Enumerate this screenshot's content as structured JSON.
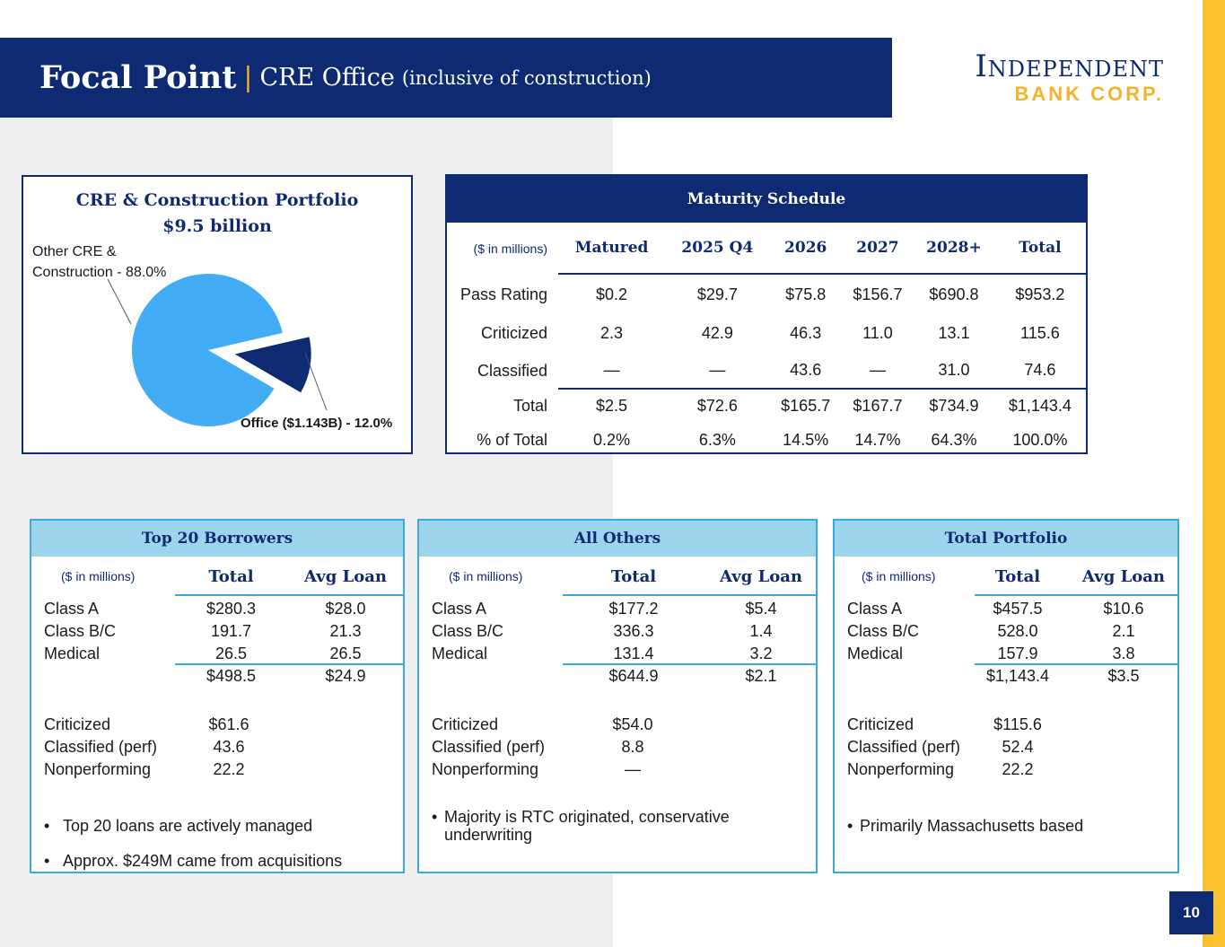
{
  "header": {
    "title_main": "Focal Point",
    "separator": "|",
    "title_sub": "CRE Office",
    "title_paren": "(inclusive of construction)"
  },
  "logo": {
    "line1": "Independent",
    "line2": "BANK CORP."
  },
  "colors": {
    "navy": "#0e2a73",
    "gold": "#f2b42a",
    "light_blue": "#42adf5",
    "card_border": "#39a9df",
    "card_header": "#9dd6ec"
  },
  "pie": {
    "title_line1": "CRE & Construction Portfolio",
    "title_line2": "$9.5 billion",
    "label_other_line1": "Other CRE &",
    "label_other_line2": "Construction - 88.0%",
    "label_office": "Office ($1.143B) - 12.0%"
  },
  "chart_data": {
    "type": "pie",
    "title": "CRE & Construction Portfolio $9.5 billion",
    "categories": [
      "Other CRE & Construction",
      "Office ($1.143B)"
    ],
    "values": [
      88.0,
      12.0
    ],
    "colors": [
      "#42adf5",
      "#0e2a73"
    ]
  },
  "maturity": {
    "title": "Maturity Schedule",
    "unit": "($ in millions)",
    "columns": [
      "Matured",
      "2025 Q4",
      "2026",
      "2027",
      "2028+",
      "Total"
    ],
    "rows": [
      {
        "label": "Pass Rating",
        "values": [
          "$0.2",
          "$29.7",
          "$75.8",
          "$156.7",
          "$690.8",
          "$953.2"
        ]
      },
      {
        "label": "Criticized",
        "values": [
          "2.3",
          "42.9",
          "46.3",
          "11.0",
          "13.1",
          "115.6"
        ]
      },
      {
        "label": "Classified",
        "values": [
          "—",
          "—",
          "43.6",
          "—",
          "31.0",
          "74.6"
        ]
      },
      {
        "label": "Total",
        "values": [
          "$2.5",
          "$72.6",
          "$165.7",
          "$167.7",
          "$734.9",
          "$1,143.4"
        ]
      },
      {
        "label": "% of Total",
        "values": [
          "0.2%",
          "6.3%",
          "14.5%",
          "14.7%",
          "64.3%",
          "100.0%"
        ]
      }
    ]
  },
  "cards": [
    {
      "title": "Top 20 Borrowers",
      "unit": "($ in millions)",
      "col_total": "Total",
      "col_avg": "Avg Loan",
      "rows": [
        {
          "label": "Class A",
          "total": "$280.3",
          "avg": "$28.0"
        },
        {
          "label": "Class B/C",
          "total": "191.7",
          "avg": "21.3"
        },
        {
          "label": "Medical",
          "total": "26.5",
          "avg": "26.5"
        }
      ],
      "subtotal": {
        "total": "$498.5",
        "avg": "$24.9"
      },
      "quality": [
        {
          "label": "Criticized",
          "value": "$61.6"
        },
        {
          "label": "Classified (perf)",
          "value": "43.6"
        },
        {
          "label": "Nonperforming",
          "value": "22.2"
        }
      ],
      "bullets": [
        "Top 20 loans are actively managed",
        "Approx. $249M came from acquisitions"
      ]
    },
    {
      "title": "All Others",
      "unit": "($ in millions)",
      "col_total": "Total",
      "col_avg": "Avg Loan",
      "rows": [
        {
          "label": "Class A",
          "total": "$177.2",
          "avg": "$5.4"
        },
        {
          "label": "Class B/C",
          "total": "336.3",
          "avg": "1.4"
        },
        {
          "label": "Medical",
          "total": "131.4",
          "avg": "3.2"
        }
      ],
      "subtotal": {
        "total": "$644.9",
        "avg": "$2.1"
      },
      "quality": [
        {
          "label": "Criticized",
          "value": "$54.0"
        },
        {
          "label": "Classified (perf)",
          "value": "8.8"
        },
        {
          "label": "Nonperforming",
          "value": "—"
        }
      ],
      "bullets": [
        "Majority is RTC originated, conservative underwriting"
      ]
    },
    {
      "title": "Total Portfolio",
      "unit": "($ in millions)",
      "col_total": "Total",
      "col_avg": "Avg Loan",
      "rows": [
        {
          "label": "Class A",
          "total": "$457.5",
          "avg": "$10.6"
        },
        {
          "label": "Class B/C",
          "total": "528.0",
          "avg": "2.1"
        },
        {
          "label": "Medical",
          "total": "157.9",
          "avg": "3.8"
        }
      ],
      "subtotal": {
        "total": "$1,143.4",
        "avg": "$3.5"
      },
      "quality": [
        {
          "label": "Criticized",
          "value": "$115.6"
        },
        {
          "label": "Classified (perf)",
          "value": "52.4"
        },
        {
          "label": "Nonperforming",
          "value": "22.2"
        }
      ],
      "bullets": [
        "Primarily Massachusetts based"
      ]
    }
  ],
  "bullet_char": "•",
  "page_number": "10"
}
